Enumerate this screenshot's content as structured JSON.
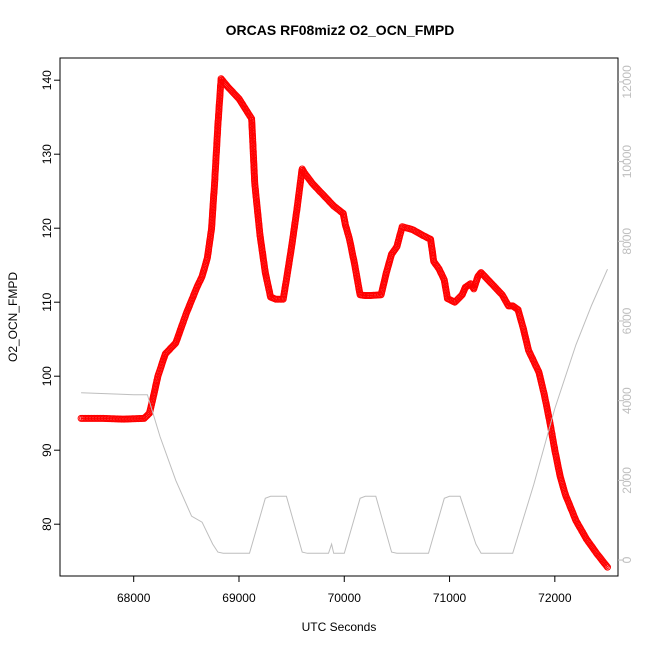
{
  "chart_data": {
    "type": "scatter",
    "title": "ORCAS RF08miz2 O2_OCN_FMPD",
    "xlabel": "UTC Seconds",
    "ylabel": "O2_OCN_FMPD",
    "xlim": [
      67300,
      72600
    ],
    "ylim": [
      73,
      143
    ],
    "y2lim": [
      -400,
      12600
    ],
    "grid": false,
    "legend": "none",
    "x_ticks": [
      68000,
      69000,
      70000,
      71000,
      72000
    ],
    "y_ticks": [
      80,
      90,
      100,
      110,
      120,
      130,
      140
    ],
    "y2_ticks": [
      0,
      2000,
      4000,
      6000,
      8000,
      10000,
      12000
    ],
    "series": [
      {
        "axis": "left",
        "style": "points-lines",
        "color": "#ff0000",
        "points": [
          [
            67500,
            94.3
          ],
          [
            67700,
            94.3
          ],
          [
            67900,
            94.2
          ],
          [
            68100,
            94.3
          ],
          [
            68150,
            95.0
          ],
          [
            68180,
            96.8
          ],
          [
            68230,
            100.0
          ],
          [
            68300,
            103.0
          ],
          [
            68400,
            104.5
          ],
          [
            68500,
            108.5
          ],
          [
            68600,
            112.0
          ],
          [
            68650,
            113.5
          ],
          [
            68700,
            116.0
          ],
          [
            68740,
            120.0
          ],
          [
            68770,
            126.5
          ],
          [
            68800,
            134.0
          ],
          [
            68830,
            140.2
          ],
          [
            68900,
            139.0
          ],
          [
            69000,
            137.5
          ],
          [
            69120,
            134.8
          ],
          [
            69130,
            132.0
          ],
          [
            69150,
            126.0
          ],
          [
            69200,
            119.0
          ],
          [
            69250,
            114.0
          ],
          [
            69300,
            110.7
          ],
          [
            69350,
            110.4
          ],
          [
            69420,
            110.4
          ],
          [
            69450,
            113.0
          ],
          [
            69500,
            117.5
          ],
          [
            69550,
            122.5
          ],
          [
            69600,
            128.0
          ],
          [
            69620,
            127.5
          ],
          [
            69700,
            126.0
          ],
          [
            69800,
            124.5
          ],
          [
            69900,
            123.0
          ],
          [
            69990,
            122.0
          ],
          [
            70010,
            120.5
          ],
          [
            70050,
            118.5
          ],
          [
            70100,
            115.0
          ],
          [
            70150,
            111.0
          ],
          [
            70200,
            110.9
          ],
          [
            70250,
            110.9
          ],
          [
            70350,
            111.0
          ],
          [
            70400,
            114.0
          ],
          [
            70450,
            116.5
          ],
          [
            70500,
            117.5
          ],
          [
            70550,
            120.2
          ],
          [
            70650,
            119.8
          ],
          [
            70750,
            119.0
          ],
          [
            70820,
            118.5
          ],
          [
            70850,
            115.5
          ],
          [
            70900,
            114.5
          ],
          [
            70950,
            113.0
          ],
          [
            70980,
            110.5
          ],
          [
            71050,
            110.0
          ],
          [
            71120,
            111.0
          ],
          [
            71150,
            112.0
          ],
          [
            71200,
            112.5
          ],
          [
            71230,
            111.8
          ],
          [
            71270,
            113.5
          ],
          [
            71300,
            114.0
          ],
          [
            71400,
            112.5
          ],
          [
            71500,
            111.0
          ],
          [
            71560,
            109.5
          ],
          [
            71600,
            109.5
          ],
          [
            71650,
            109.0
          ],
          [
            71700,
            106.5
          ],
          [
            71750,
            103.5
          ],
          [
            71800,
            102.0
          ],
          [
            71850,
            100.5
          ],
          [
            71900,
            97.5
          ],
          [
            71950,
            94.0
          ],
          [
            72000,
            90.0
          ],
          [
            72050,
            86.5
          ],
          [
            72100,
            84.0
          ],
          [
            72200,
            80.5
          ],
          [
            72300,
            78.0
          ],
          [
            72400,
            76.0
          ],
          [
            72500,
            74.2
          ]
        ]
      },
      {
        "axis": "right",
        "style": "line",
        "color": "#bebebe",
        "points": [
          [
            67500,
            4200
          ],
          [
            68000,
            4150
          ],
          [
            68130,
            4150
          ],
          [
            68250,
            3100
          ],
          [
            68400,
            2000
          ],
          [
            68550,
            1100
          ],
          [
            68650,
            950
          ],
          [
            68750,
            400
          ],
          [
            68800,
            200
          ],
          [
            68850,
            170
          ],
          [
            69100,
            170
          ],
          [
            69250,
            1550
          ],
          [
            69300,
            1600
          ],
          [
            69450,
            1600
          ],
          [
            69600,
            200
          ],
          [
            69650,
            170
          ],
          [
            69850,
            170
          ],
          [
            69880,
            400
          ],
          [
            69900,
            170
          ],
          [
            70000,
            170
          ],
          [
            70150,
            1550
          ],
          [
            70200,
            1600
          ],
          [
            70300,
            1600
          ],
          [
            70450,
            200
          ],
          [
            70500,
            170
          ],
          [
            70800,
            170
          ],
          [
            70950,
            1550
          ],
          [
            71000,
            1600
          ],
          [
            71100,
            1600
          ],
          [
            71250,
            400
          ],
          [
            71300,
            170
          ],
          [
            71600,
            170
          ],
          [
            71800,
            1900
          ],
          [
            72000,
            3800
          ],
          [
            72200,
            5400
          ],
          [
            72350,
            6400
          ],
          [
            72500,
            7300
          ]
        ]
      }
    ]
  }
}
